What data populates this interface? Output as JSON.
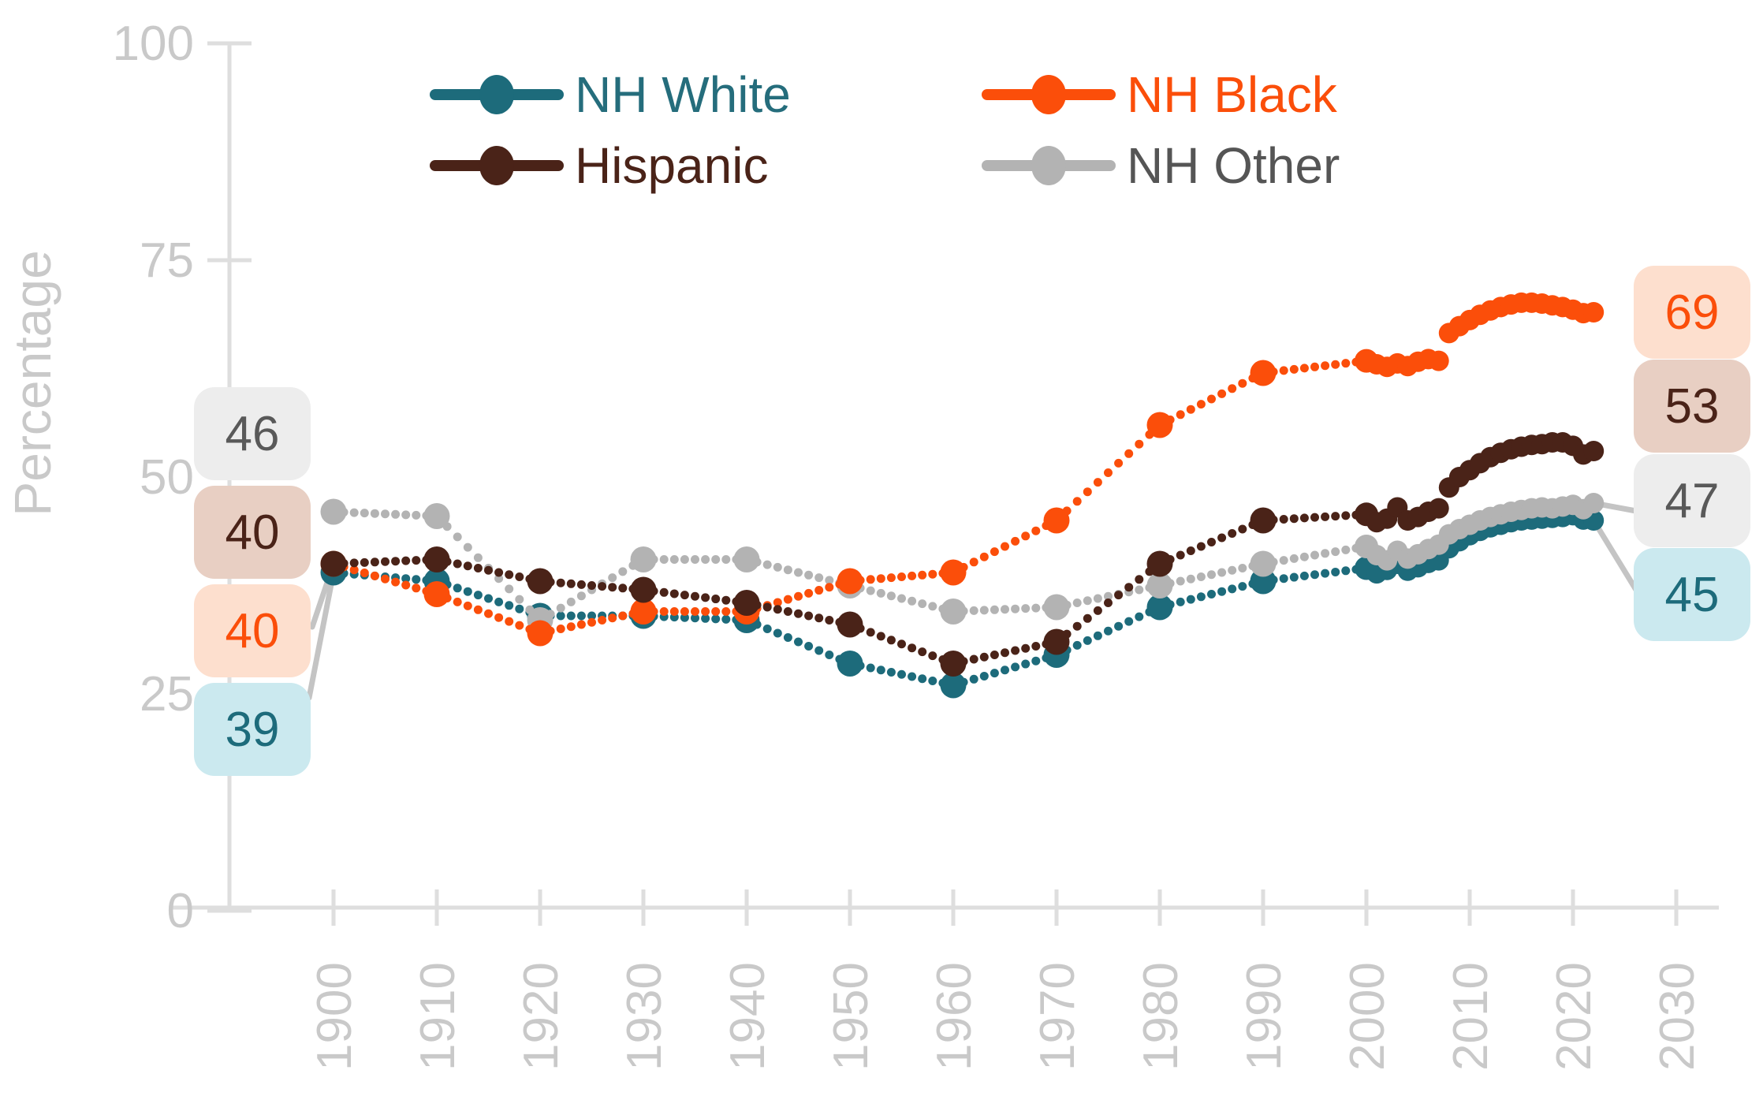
{
  "chart_data": {
    "type": "line",
    "title": "",
    "ylabel": "Percentage",
    "xlabel": "",
    "ylim": [
      0,
      100
    ],
    "y_ticks": [
      "0",
      "25",
      "50",
      "75",
      "100"
    ],
    "y_tick_values": [
      0,
      25,
      50,
      75,
      100
    ],
    "x_ticks": [
      "1900",
      "1910",
      "1920",
      "1930",
      "1940",
      "1950",
      "1960",
      "1970",
      "1980",
      "1990",
      "2000",
      "2010",
      "2020",
      "2030"
    ],
    "x_tick_values": [
      1900,
      1910,
      1920,
      1930,
      1940,
      1950,
      1960,
      1970,
      1980,
      1990,
      2000,
      2010,
      2020,
      2030
    ],
    "grid": false,
    "legend_position": "top",
    "axis_color": "#dedede",
    "tick_label_color": "#c9c9c9",
    "leader_line_color": "#c4c4c4",
    "series": [
      {
        "name": "NH White",
        "color": "#1d6b7b",
        "decade_years": [
          1900,
          1910,
          1920,
          1930,
          1940,
          1950,
          1960,
          1970,
          1980,
          1990
        ],
        "decade_values": [
          39,
          38,
          34,
          34,
          33.5,
          28.5,
          26,
          29.5,
          35,
          38
        ],
        "annual_start_year": 2000,
        "annual_values": [
          39.5,
          38.9,
          39.3,
          40.0,
          39.2,
          39.6,
          40.1,
          40.4,
          41.8,
          42.6,
          43.3,
          43.8,
          44.2,
          44.5,
          44.8,
          45.0,
          45.1,
          45.2,
          45.3,
          45.4,
          45.6,
          45.1,
          45.0
        ],
        "start_label": "39",
        "end_label": "45",
        "badge_fg": "#1d6b7b",
        "badge_bg": "#cbe9ef"
      },
      {
        "name": "NH Black",
        "color": "#fb4e0a",
        "decade_years": [
          1900,
          1910,
          1920,
          1930,
          1940,
          1950,
          1960,
          1970,
          1980,
          1990
        ],
        "decade_values": [
          40,
          36.5,
          32,
          34.5,
          34.5,
          38,
          39,
          45,
          56,
          62
        ],
        "annual_start_year": 2000,
        "annual_values": [
          63.4,
          63.0,
          62.7,
          63.1,
          62.8,
          63.3,
          63.6,
          63.4,
          66.6,
          67.4,
          68.1,
          68.7,
          69.2,
          69.6,
          69.9,
          70.1,
          70.1,
          70.0,
          69.8,
          69.6,
          69.3,
          68.9,
          69.0
        ],
        "start_label": "40",
        "end_label": "69",
        "badge_fg": "#fb4e0a",
        "badge_bg": "#fddfce"
      },
      {
        "name": "Hispanic",
        "color": "#4a2318",
        "decade_years": [
          1900,
          1910,
          1920,
          1930,
          1940,
          1950,
          1960,
          1970,
          1980,
          1990
        ],
        "decade_values": [
          40,
          40.5,
          38,
          37,
          35.5,
          33,
          28.5,
          31,
          40,
          45
        ],
        "annual_start_year": 2000,
        "annual_values": [
          45.7,
          44.8,
          45.2,
          46.5,
          45.0,
          45.4,
          46.0,
          46.4,
          48.8,
          50.0,
          50.8,
          51.6,
          52.3,
          52.8,
          53.2,
          53.5,
          53.7,
          53.8,
          54.0,
          54.0,
          53.6,
          52.6,
          53.0
        ],
        "start_label": "40",
        "end_label": "53",
        "badge_fg": "#4a2318",
        "badge_bg": "#e8cfc3"
      },
      {
        "name": "NH Other",
        "color": "#b3b3b3",
        "decade_years": [
          1900,
          1910,
          1920,
          1930,
          1940,
          1950,
          1960,
          1970,
          1980,
          1990
        ],
        "decade_values": [
          46,
          45.5,
          33.5,
          40.5,
          40.5,
          37.5,
          34.5,
          35,
          37.5,
          40
        ],
        "annual_start_year": 2000,
        "annual_values": [
          42.0,
          41.0,
          40.4,
          41.5,
          40.6,
          41.1,
          41.7,
          42.2,
          43.4,
          44.0,
          44.5,
          45.0,
          45.4,
          45.7,
          46.0,
          46.2,
          46.4,
          46.5,
          46.4,
          46.6,
          46.8,
          46.3,
          47.0
        ],
        "start_label": "46",
        "end_label": "47",
        "badge_fg": "#595959",
        "badge_bg": "#ededed"
      }
    ],
    "legend": [
      {
        "label": "NH White",
        "color": "#1d6b7b",
        "text_color": "#256d7c"
      },
      {
        "label": "NH Black",
        "color": "#fb4e0a",
        "text_color": "#fb4e0a"
      },
      {
        "label": "Hispanic",
        "color": "#4a2318",
        "text_color": "#4a2318"
      },
      {
        "label": "NH Other",
        "color": "#b3b3b3",
        "text_color": "#555555"
      }
    ]
  }
}
